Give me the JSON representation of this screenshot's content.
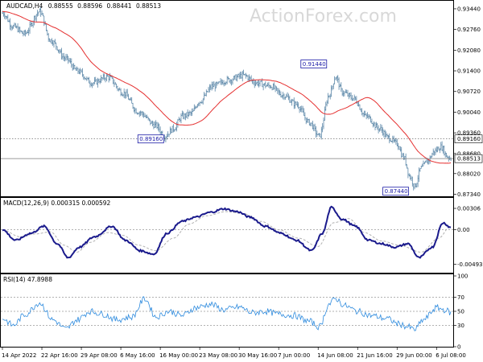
{
  "chart_data": [
    {
      "type": "ohlc",
      "title": "AUDCAD,H4",
      "ohlc": [
        "0.88555",
        "0.88596",
        "0.88441",
        "0.88513"
      ],
      "ylim": [
        0.873,
        0.9365
      ],
      "y_ticks": [
        "0.93440",
        "0.92760",
        "0.92080",
        "0.91400",
        "0.90720",
        "0.90040",
        "0.89360",
        "0.88680",
        "0.88020",
        "0.87340"
      ],
      "y_tick_values": [
        0.9344,
        0.9276,
        0.9208,
        0.914,
        0.9072,
        0.9004,
        0.8936,
        0.8868,
        0.8802,
        0.8734
      ],
      "levels": [
        {
          "value": 0.8916,
          "label": "0.89160",
          "style": "dotted"
        },
        {
          "value": 0.88513,
          "label": "0.88513",
          "style": "solid"
        }
      ],
      "annotations": [
        {
          "text": "0.89160",
          "x": "2022-05-16 00:00",
          "y": 0.8916
        },
        {
          "text": "0.91440",
          "x": "2022-06-02 08:00",
          "y": 0.9144
        },
        {
          "text": "0.87440",
          "x": "2022-06-30 16:00",
          "y": 0.8744
        }
      ],
      "x_ticks": [
        "14 Apr 2022",
        "22 Apr 16:00",
        "29 Apr 08:00",
        "6 May 16:00",
        "16 May 00:00",
        "23 May 08:00",
        "30 May 16:00",
        "7 Jun 00:00",
        "14 Jun 08:00",
        "21 Jun 16:00",
        "29 Jun 00:00",
        "6 Jul 08:00"
      ],
      "x_tick_index": [
        0,
        36,
        72,
        108,
        144,
        180,
        216,
        252,
        288,
        324,
        360,
        396
      ],
      "bar_count": 410,
      "price_anchors": [
        [
          0,
          0.933
        ],
        [
          10,
          0.9285
        ],
        [
          20,
          0.9262
        ],
        [
          34,
          0.9335
        ],
        [
          44,
          0.924
        ],
        [
          58,
          0.918
        ],
        [
          68,
          0.914
        ],
        [
          82,
          0.91
        ],
        [
          96,
          0.912
        ],
        [
          110,
          0.9068
        ],
        [
          124,
          0.9005
        ],
        [
          140,
          0.896
        ],
        [
          148,
          0.8925
        ],
        [
          156,
          0.895
        ],
        [
          164,
          0.899
        ],
        [
          172,
          0.9
        ],
        [
          180,
          0.904
        ],
        [
          192,
          0.909
        ],
        [
          206,
          0.911
        ],
        [
          220,
          0.9125
        ],
        [
          232,
          0.91
        ],
        [
          244,
          0.909
        ],
        [
          256,
          0.906
        ],
        [
          268,
          0.903
        ],
        [
          280,
          0.897
        ],
        [
          289,
          0.8925
        ],
        [
          298,
          0.906
        ],
        [
          304,
          0.912
        ],
        [
          310,
          0.907
        ],
        [
          320,
          0.905
        ],
        [
          332,
          0.899
        ],
        [
          344,
          0.895
        ],
        [
          352,
          0.892
        ],
        [
          360,
          0.89
        ],
        [
          366,
          0.8855
        ],
        [
          372,
          0.879
        ],
        [
          376,
          0.876
        ],
        [
          382,
          0.882
        ],
        [
          388,
          0.8845
        ],
        [
          394,
          0.8875
        ],
        [
          400,
          0.889
        ],
        [
          406,
          0.8858
        ],
        [
          409,
          0.88513
        ]
      ],
      "moving_average": {
        "color": "#e53030",
        "start": 0.9335,
        "end": 0.8872
      }
    },
    {
      "type": "line",
      "title": "MACD(12,26,9) 0.000315 0.000592",
      "ylim": [
        -0.0058,
        0.0041
      ],
      "y_ticks": [
        "0.00306",
        "0.00",
        "-0.004931"
      ],
      "y_tick_values": [
        0.00306,
        0.0,
        -0.004931
      ],
      "series": [
        {
          "name": "MACD",
          "color": "#1a1a8c",
          "anchors": [
            [
              0,
              0.0
            ],
            [
              12,
              -0.0015
            ],
            [
              26,
              -0.0005
            ],
            [
              38,
              0.0005
            ],
            [
              50,
              -0.002
            ],
            [
              60,
              -0.004
            ],
            [
              70,
              -0.0025
            ],
            [
              84,
              -0.001
            ],
            [
              100,
              0.0005
            ],
            [
              112,
              -0.0015
            ],
            [
              126,
              -0.003
            ],
            [
              138,
              -0.0035
            ],
            [
              150,
              -0.0005
            ],
            [
              164,
              0.0012
            ],
            [
              176,
              0.0018
            ],
            [
              190,
              0.0025
            ],
            [
              202,
              0.003
            ],
            [
              214,
              0.0026
            ],
            [
              226,
              0.0018
            ],
            [
              240,
              0.0005
            ],
            [
              254,
              -0.0005
            ],
            [
              268,
              -0.0015
            ],
            [
              282,
              -0.003
            ],
            [
              292,
              -0.0005
            ],
            [
              300,
              0.0032
            ],
            [
              310,
              0.0015
            ],
            [
              322,
              0.0005
            ],
            [
              334,
              -0.0015
            ],
            [
              346,
              -0.002
            ],
            [
              358,
              -0.0025
            ],
            [
              370,
              -0.002
            ],
            [
              380,
              -0.004
            ],
            [
              392,
              -0.0025
            ],
            [
              402,
              0.001
            ],
            [
              409,
              0.000315
            ]
          ]
        },
        {
          "name": "Signal",
          "color": "#b0b0b0",
          "style": "dashed",
          "anchors": [
            [
              0,
              0.0
            ],
            [
              16,
              -0.001
            ],
            [
              30,
              -0.0006
            ],
            [
              44,
              -0.0003
            ],
            [
              56,
              -0.0022
            ],
            [
              68,
              -0.0032
            ],
            [
              80,
              -0.0018
            ],
            [
              96,
              -0.0004
            ],
            [
              110,
              -0.0008
            ],
            [
              124,
              -0.0022
            ],
            [
              140,
              -0.003
            ],
            [
              156,
              -0.0012
            ],
            [
              170,
              0.0008
            ],
            [
              186,
              0.002
            ],
            [
              204,
              0.0026
            ],
            [
              220,
              0.0023
            ],
            [
              236,
              0.0012
            ],
            [
              252,
              0.0
            ],
            [
              270,
              -0.0012
            ],
            [
              288,
              -0.0024
            ],
            [
              302,
              0.001
            ],
            [
              316,
              0.0016
            ],
            [
              330,
              -0.0004
            ],
            [
              346,
              -0.0016
            ],
            [
              362,
              -0.0022
            ],
            [
              382,
              -0.0032
            ],
            [
              398,
              -0.0012
            ],
            [
              409,
              0.000592
            ]
          ]
        }
      ]
    },
    {
      "type": "line",
      "title": "RSI(14) 47.8988",
      "ylim": [
        0,
        100
      ],
      "y_ticks": [
        "100",
        "70",
        "50",
        "30",
        "0"
      ],
      "y_tick_values": [
        100,
        70,
        50,
        30,
        0
      ],
      "series": [
        {
          "name": "RSI",
          "color": "#2e8bde",
          "anchors": [
            [
              0,
              40
            ],
            [
              10,
              30
            ],
            [
              20,
              45
            ],
            [
              34,
              62
            ],
            [
              46,
              38
            ],
            [
              58,
              25
            ],
            [
              68,
              38
            ],
            [
              80,
              50
            ],
            [
              92,
              46
            ],
            [
              104,
              38
            ],
            [
              118,
              42
            ],
            [
              130,
              68
            ],
            [
              140,
              42
            ],
            [
              152,
              50
            ],
            [
              164,
              44
            ],
            [
              176,
              55
            ],
            [
              190,
              60
            ],
            [
              202,
              52
            ],
            [
              216,
              56
            ],
            [
              228,
              48
            ],
            [
              240,
              50
            ],
            [
              252,
              46
            ],
            [
              266,
              44
            ],
            [
              280,
              36
            ],
            [
              289,
              28
            ],
            [
              298,
              60
            ],
            [
              304,
              68
            ],
            [
              312,
              58
            ],
            [
              324,
              50
            ],
            [
              336,
              44
            ],
            [
              350,
              40
            ],
            [
              362,
              32
            ],
            [
              370,
              28
            ],
            [
              376,
              24
            ],
            [
              384,
              38
            ],
            [
              396,
              55
            ],
            [
              404,
              52
            ],
            [
              409,
              47.9
            ]
          ]
        }
      ]
    }
  ],
  "watermark": "ActionForex.com",
  "colors": {
    "bars": "#5b87a8",
    "ma": "#e53030",
    "macd": "#1a1a8c",
    "signal": "#b0b0b0",
    "rsi": "#2e8bde",
    "label": "#1a1aa6"
  }
}
